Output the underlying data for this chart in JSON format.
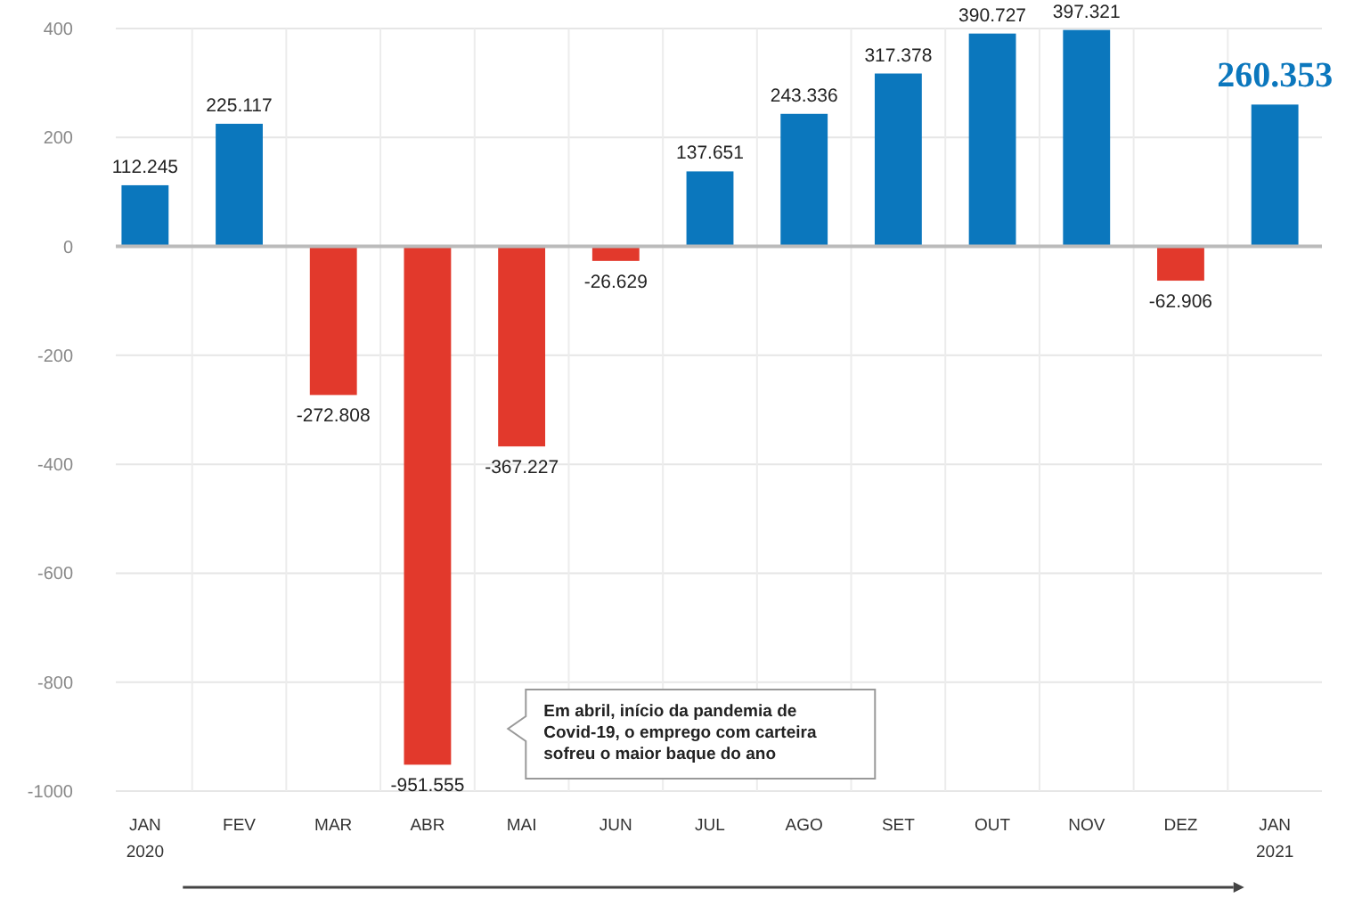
{
  "chart_data": {
    "type": "bar",
    "categories": [
      "JAN 2020",
      "FEV",
      "MAR",
      "ABR",
      "MAI",
      "JUN",
      "JUL",
      "AGO",
      "SET",
      "OUT",
      "NOV",
      "DEZ",
      "JAN 2021"
    ],
    "values": [
      112.245,
      225.117,
      -272.808,
      -951.555,
      -367.227,
      -26.629,
      137.651,
      243.336,
      317.378,
      390.727,
      397.321,
      -62.906,
      260.353
    ],
    "colors": [
      "#0b77bd",
      "#0b77bd",
      "#e2392c",
      "#e2392c",
      "#e2392c",
      "#e2392c",
      "#0b77bd",
      "#0b77bd",
      "#0b77bd",
      "#0b77bd",
      "#0b77bd",
      "#e2392c",
      "#0b77bd"
    ],
    "value_labels": [
      "112.245",
      "225.117",
      "-272.808",
      "-951.555",
      "-367.227",
      "-26.629",
      "137.651",
      "243.336",
      "317.378",
      "390.727",
      "397.321",
      "-62.906",
      "260.353"
    ],
    "ylim": [
      -1000,
      400
    ],
    "yticks": [
      400,
      200,
      0,
      -200,
      -400,
      -600,
      -800,
      -1000
    ],
    "grid": true,
    "annotations": [
      "Em abril, início da pandemia de Covid-19, o emprego com carteira sofreu o maior baque do ano"
    ]
  }
}
